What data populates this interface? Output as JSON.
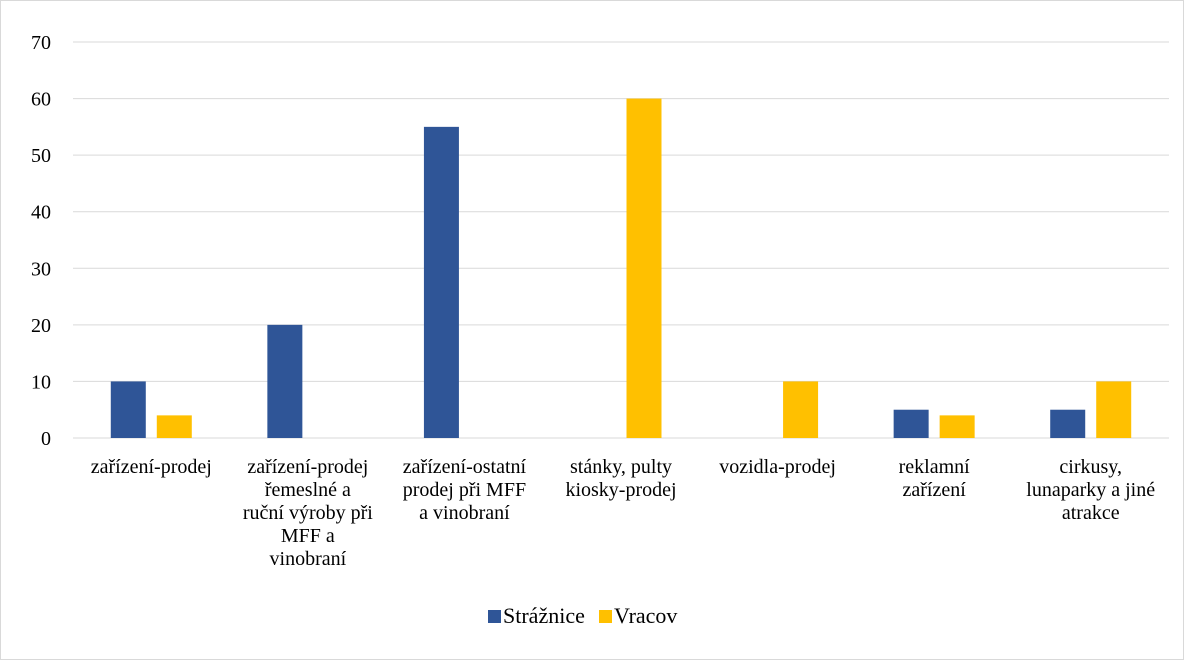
{
  "chart_data": {
    "type": "bar",
    "title": "",
    "xlabel": "",
    "ylabel": "",
    "ylim": [
      0,
      70
    ],
    "yticks": [
      0,
      10,
      20,
      30,
      40,
      50,
      60,
      70
    ],
    "grid": true,
    "legend_position": "bottom",
    "categories": [
      [
        "zařízení-prodej"
      ],
      [
        "zařízení-prodej",
        "řemeslné a",
        "ruční výroby při",
        "MFF a",
        "vinobraní"
      ],
      [
        "zařízení-ostatní",
        "prodej při MFF",
        "a vinobraní"
      ],
      [
        "stánky, pulty",
        "kiosky-prodej"
      ],
      [
        "vozidla-prodej"
      ],
      [
        "reklamní",
        "zařízení"
      ],
      [
        "cirkusy,",
        "lunaparky a jiné",
        "atrakce"
      ]
    ],
    "series": [
      {
        "name": "Strážnice",
        "color": "#2f5597",
        "values": [
          10,
          20,
          55,
          0,
          0,
          5,
          5
        ]
      },
      {
        "name": "Vracov",
        "color": "#ffc000",
        "values": [
          4,
          0,
          0,
          60,
          10,
          4,
          10
        ]
      }
    ]
  }
}
